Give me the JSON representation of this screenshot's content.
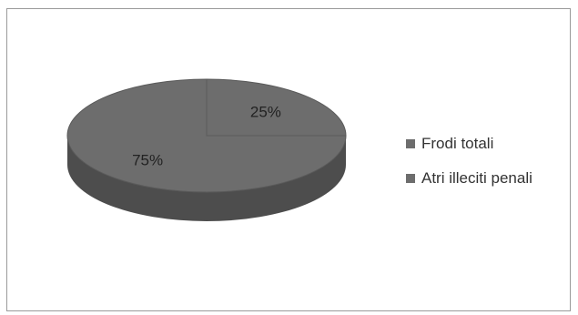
{
  "chart_data": {
    "type": "pie",
    "style": "3d",
    "legend_position": "right",
    "slices": [
      {
        "label": "Frodi totali",
        "value": 25,
        "data_label": "25%",
        "color": "#6d6d6d"
      },
      {
        "label": "Atri illeciti penali",
        "value": 75,
        "data_label": "75%",
        "color": "#6d6d6d"
      }
    ]
  }
}
